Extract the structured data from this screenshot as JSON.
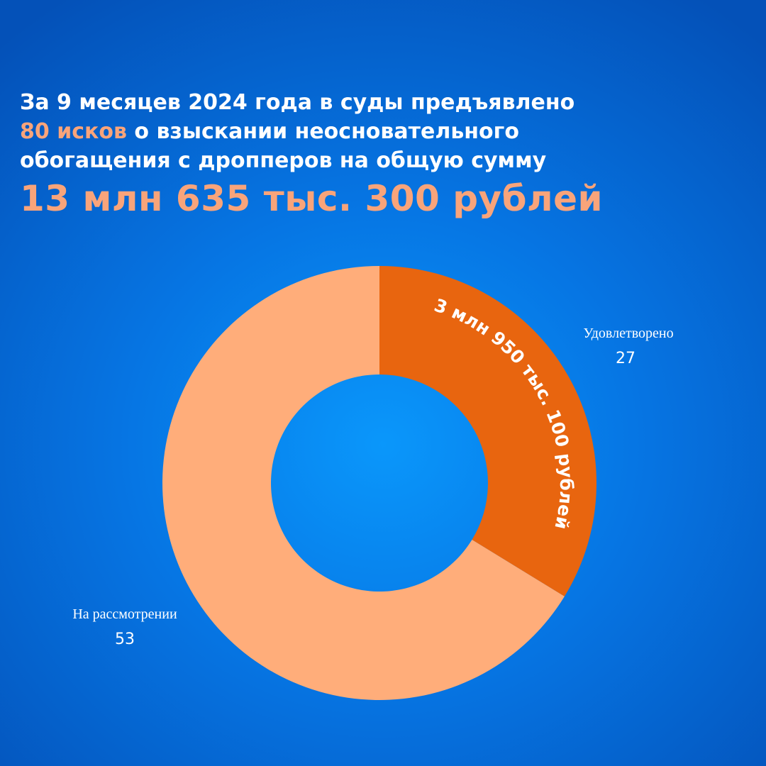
{
  "headline": {
    "line1": "За 9 месяцев 2024 года  в суды предъявлено",
    "line2_accent": "80 исков",
    "line2_rest": " о взыскании неосновательного",
    "line3": "обогащения с дропперов на общую сумму",
    "total": "13 млн 635 тыс. 300 рублей"
  },
  "colors": {
    "background": "#0675e3",
    "accent_text": "#f9a47a",
    "slice_satisfied": "#e8650f",
    "slice_pending": "#ffad7a"
  },
  "chart_data": {
    "type": "pie",
    "donut": true,
    "categories": [
      "Удовлетворено",
      "На рассмотрении"
    ],
    "values": [
      27,
      53
    ],
    "colors": [
      "#e8650f",
      "#ffad7a"
    ],
    "annotations": [
      {
        "category": "Удовлетворено",
        "text": "3 млн 950 тыс. 100 рублей"
      }
    ],
    "title": "",
    "legend": "none"
  }
}
